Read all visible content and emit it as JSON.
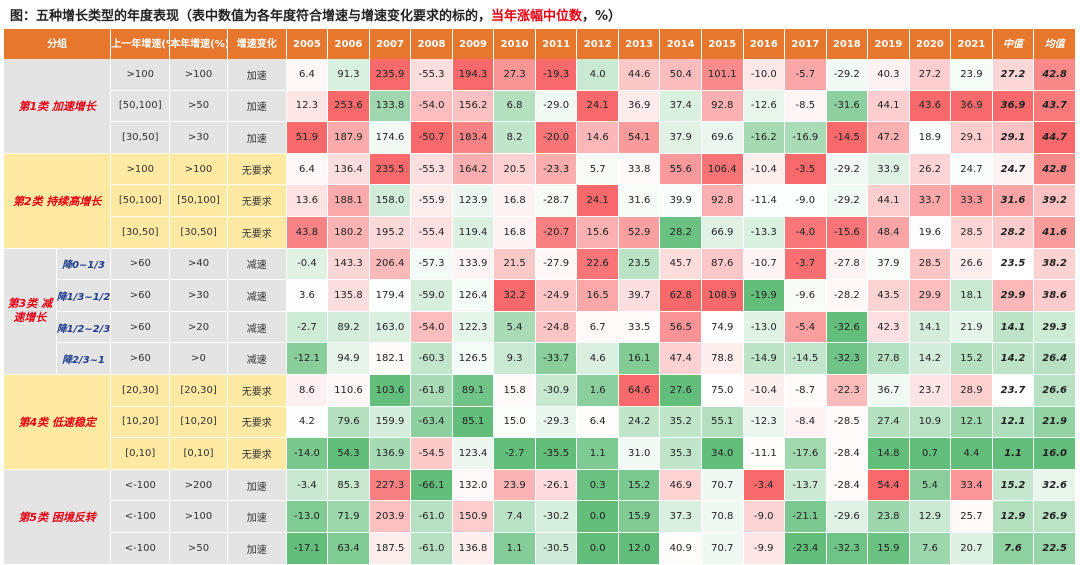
{
  "title_main": "图：五种增长类型的年度表现（表中数值为各年度符合增速与增速变化要求的标的，",
  "title_highlight": "当年涨幅中位数",
  "title_tail": "，%）",
  "headers": [
    "分组",
    "上一年增速(%)",
    "本年增速(%)",
    "增速变化",
    "2005",
    "2006",
    "2007",
    "2008",
    "2009",
    "2010",
    "2011",
    "2012",
    "2013",
    "2014",
    "2015",
    "2016",
    "2017",
    "2018",
    "2019",
    "2020",
    "2021",
    "中值",
    "均值"
  ],
  "groups": [
    {
      "label": "第1类  加速增长",
      "rows": 3
    },
    {
      "label": "第2类  持续高增长",
      "rows": 3
    },
    {
      "label": "第3类 减速增长",
      "rows": 4
    },
    {
      "label": "第4类  低速稳定",
      "rows": 3
    },
    {
      "label": "第5类  困境反转",
      "rows": 3
    }
  ],
  "chart_data": {
    "type": "table",
    "columns": [
      "2005",
      "2006",
      "2007",
      "2008",
      "2009",
      "2010",
      "2011",
      "2012",
      "2013",
      "2014",
      "2015",
      "2016",
      "2017",
      "2018",
      "2019",
      "2020",
      "2021",
      "中值",
      "均值"
    ],
    "rows": [
      {
        "group": "第1类  加速增长",
        "sub": "",
        "prev": ">100",
        "cur": ">100",
        "change": "加速",
        "values": [
          6.4,
          91.3,
          235.9,
          -55.3,
          194.3,
          27.3,
          -19.3,
          4.0,
          44.6,
          50.4,
          101.1,
          -10.0,
          -5.7,
          -29.2,
          40.3,
          27.2,
          23.9,
          27.2,
          42.8
        ]
      },
      {
        "group": "第1类  加速增长",
        "sub": "",
        "prev": "[50,100]",
        "cur": ">50",
        "change": "加速",
        "values": [
          12.3,
          253.6,
          133.8,
          -54.0,
          156.2,
          6.8,
          -29.0,
          24.1,
          36.9,
          37.4,
          92.8,
          -12.6,
          -8.5,
          -31.6,
          44.1,
          43.6,
          36.9,
          36.9,
          43.7
        ]
      },
      {
        "group": "第1类  加速增长",
        "sub": "",
        "prev": "[30,50]",
        "cur": ">30",
        "change": "加速",
        "values": [
          51.9,
          187.9,
          174.6,
          -50.7,
          183.4,
          8.2,
          -20.0,
          14.6,
          54.1,
          37.9,
          69.6,
          -16.2,
          -16.9,
          -14.5,
          47.2,
          18.9,
          29.1,
          29.1,
          44.7
        ]
      },
      {
        "group": "第2类  持续高增长",
        "sub": "",
        "prev": ">100",
        "cur": ">100",
        "change": "无要求",
        "values": [
          6.4,
          136.4,
          235.5,
          -55.3,
          164.2,
          20.5,
          -23.3,
          5.7,
          33.8,
          55.6,
          106.4,
          -10.4,
          -3.5,
          -29.2,
          33.9,
          26.2,
          24.7,
          24.7,
          42.8
        ]
      },
      {
        "group": "第2类  持续高增长",
        "sub": "",
        "prev": "[50,100]",
        "cur": "[50,100]",
        "change": "无要求",
        "values": [
          13.6,
          188.1,
          158.0,
          -55.9,
          123.9,
          16.8,
          -28.7,
          24.1,
          31.6,
          39.9,
          92.8,
          -11.4,
          -9.0,
          -29.2,
          44.1,
          33.7,
          33.3,
          31.6,
          39.2
        ]
      },
      {
        "group": "第2类  持续高增长",
        "sub": "",
        "prev": "[30,50]",
        "cur": "[30,50]",
        "change": "无要求",
        "values": [
          43.8,
          180.2,
          195.2,
          -55.4,
          119.4,
          16.8,
          -20.7,
          15.6,
          52.9,
          28.2,
          66.9,
          -13.3,
          -4.0,
          -15.6,
          48.4,
          19.6,
          28.5,
          28.2,
          41.6
        ]
      },
      {
        "group": "第3类 减速增长",
        "sub": "降0~1/3",
        "prev": ">60",
        "cur": ">40",
        "change": "减速",
        "values": [
          -0.4,
          143.3,
          206.4,
          -57.3,
          133.9,
          21.5,
          -27.9,
          22.6,
          23.5,
          45.7,
          87.6,
          -10.7,
          -3.7,
          -27.8,
          37.9,
          28.5,
          26.6,
          23.5,
          38.2
        ]
      },
      {
        "group": "第3类 减速增长",
        "sub": "降1/3~1/2",
        "prev": ">60",
        "cur": ">30",
        "change": "减速",
        "values": [
          3.6,
          135.8,
          179.4,
          -59.0,
          126.4,
          32.2,
          -24.9,
          16.5,
          39.7,
          62.8,
          108.9,
          -19.9,
          -9.6,
          -28.2,
          43.5,
          29.9,
          18.1,
          29.9,
          38.6
        ]
      },
      {
        "group": "第3类 减速增长",
        "sub": "降1/2~2/3",
        "prev": ">60",
        "cur": ">20",
        "change": "减速",
        "values": [
          -2.7,
          89.2,
          163.0,
          -54.0,
          122.3,
          5.4,
          -24.8,
          6.7,
          33.5,
          56.5,
          74.9,
          -13.0,
          -5.4,
          -32.6,
          42.3,
          14.1,
          21.9,
          14.1,
          29.3
        ]
      },
      {
        "group": "第3类 减速增长",
        "sub": "降2/3~1",
        "prev": ">60",
        "cur": ">0",
        "change": "减速",
        "values": [
          -12.1,
          94.9,
          182.1,
          -60.3,
          126.5,
          9.3,
          -33.7,
          4.6,
          16.1,
          47.4,
          78.8,
          -14.9,
          -14.5,
          -32.3,
          27.8,
          14.2,
          15.2,
          14.2,
          26.4
        ]
      },
      {
        "group": "第4类  低速稳定",
        "sub": "",
        "prev": "[20,30]",
        "cur": "[20,30]",
        "change": "无要求",
        "values": [
          8.6,
          110.6,
          103.6,
          -61.8,
          89.1,
          15.8,
          -30.9,
          1.6,
          64.6,
          27.6,
          75.0,
          -10.4,
          -8.7,
          -22.3,
          36.7,
          23.7,
          28.9,
          23.7,
          26.6
        ]
      },
      {
        "group": "第4类  低速稳定",
        "sub": "",
        "prev": "[10,20]",
        "cur": "[10,20]",
        "change": "无要求",
        "values": [
          4.2,
          79.6,
          159.9,
          -63.4,
          85.1,
          15.0,
          -29.3,
          6.4,
          24.2,
          35.2,
          55.1,
          -12.3,
          -8.4,
          -28.5,
          27.4,
          10.9,
          12.1,
          12.1,
          21.9
        ]
      },
      {
        "group": "第4类  低速稳定",
        "sub": "",
        "prev": "[0,10]",
        "cur": "[0,10]",
        "change": "无要求",
        "values": [
          -14.0,
          54.3,
          136.9,
          -54.5,
          123.4,
          -2.7,
          -35.5,
          1.1,
          31.0,
          35.3,
          34.0,
          -11.1,
          -17.6,
          -28.4,
          14.8,
          0.7,
          4.4,
          1.1,
          16.0
        ]
      },
      {
        "group": "第5类  困境反转",
        "sub": "",
        "prev": "<-100",
        "cur": ">200",
        "change": "加速",
        "values": [
          -3.4,
          85.3,
          227.3,
          -66.1,
          132.0,
          23.9,
          -26.1,
          0.3,
          15.2,
          46.9,
          70.7,
          -3.4,
          -13.7,
          -28.4,
          54.4,
          5.4,
          33.4,
          15.2,
          32.6
        ]
      },
      {
        "group": "第5类  困境反转",
        "sub": "",
        "prev": "<-100",
        "cur": ">100",
        "change": "加速",
        "values": [
          -13.0,
          71.9,
          203.9,
          -61.0,
          150.9,
          7.4,
          -30.2,
          0.0,
          15.9,
          37.3,
          70.8,
          -9.0,
          -21.1,
          -29.6,
          23.8,
          12.9,
          25.7,
          12.9,
          26.9
        ]
      },
      {
        "group": "第5类  困境反转",
        "sub": "",
        "prev": "<-100",
        "cur": ">50",
        "change": "加速",
        "values": [
          -17.1,
          63.4,
          187.5,
          -61.0,
          136.8,
          1.1,
          -30.5,
          0.0,
          12.0,
          40.9,
          70.7,
          -9.9,
          -23.4,
          -32.3,
          15.9,
          7.6,
          20.7,
          7.6,
          22.5
        ]
      }
    ]
  },
  "colors": {
    "header": "#e8772e",
    "high": "#f8696b",
    "low": "#63be7b",
    "mid": "#ffffff",
    "group_text": "#e60012",
    "sub_text": "#1f3e8c"
  }
}
